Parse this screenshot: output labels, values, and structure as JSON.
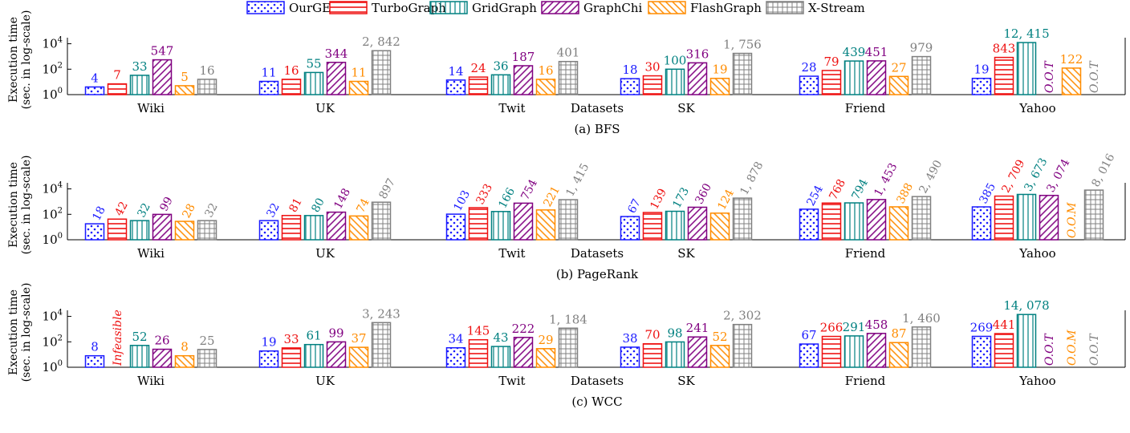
{
  "colors": {
    "OurGE": "#1a1aff",
    "TurboGraph": "#ee1111",
    "GridGraph": "#008080",
    "GraphChi": "#800080",
    "FlashGraph": "#ff8c00",
    "X-Stream": "#808080"
  },
  "legend": {
    "entries": [
      {
        "name": "OurGE",
        "pattern": "dots"
      },
      {
        "name": "TurboGraph",
        "pattern": "hlines"
      },
      {
        "name": "GridGraph",
        "pattern": "vlines"
      },
      {
        "name": "GraphChi",
        "pattern": "ne-lines"
      },
      {
        "name": "FlashGraph",
        "pattern": "nw-lines"
      },
      {
        "name": "X-Stream",
        "pattern": "grid"
      }
    ]
  },
  "chart_data": [
    {
      "type": "bar",
      "title": "(a) BFS",
      "ylabel": [
        "Execution time",
        "(sec. in log-scale)"
      ],
      "xlabel": "Datasets",
      "yscale": "log10",
      "ylim": [
        1,
        30000
      ],
      "yticks": [
        "10^0",
        "10^2",
        "10^4"
      ],
      "label_style": "horizontal",
      "categories": [
        "Wiki",
        "UK",
        "Twit",
        "SK",
        "Friend",
        "Yahoo"
      ],
      "series": [
        {
          "name": "OurGE",
          "values": [
            4,
            11,
            14,
            18,
            28,
            19
          ],
          "labels": [
            "4",
            "11",
            "14",
            "18",
            "28",
            "19"
          ]
        },
        {
          "name": "TurboGraph",
          "values": [
            7,
            16,
            24,
            30,
            79,
            843
          ],
          "labels": [
            "7",
            "16",
            "24",
            "30",
            "79",
            "843"
          ]
        },
        {
          "name": "GridGraph",
          "values": [
            33,
            55,
            36,
            100,
            439,
            12415
          ],
          "labels": [
            "33",
            "55",
            "36",
            "100",
            "439",
            "12, 415"
          ]
        },
        {
          "name": "GraphChi",
          "values": [
            547,
            344,
            187,
            316,
            451,
            null
          ],
          "labels": [
            "547",
            "344",
            "187",
            "316",
            "451",
            "O.O.T"
          ]
        },
        {
          "name": "FlashGraph",
          "values": [
            5,
            11,
            16,
            19,
            27,
            122
          ],
          "labels": [
            "5",
            "11",
            "16",
            "19",
            "27",
            "122"
          ]
        },
        {
          "name": "X-Stream",
          "values": [
            16,
            2842,
            401,
            1756,
            979,
            null
          ],
          "labels": [
            "16",
            "2, 842",
            "401",
            "1, 756",
            "979",
            "O.O.T"
          ]
        }
      ]
    },
    {
      "type": "bar",
      "title": "(b) PageRank",
      "ylabel": [
        "Execution time",
        "(sec. in log-scale)"
      ],
      "xlabel": "Datasets",
      "yscale": "log10",
      "ylim": [
        1,
        30000
      ],
      "yticks": [
        "10^0",
        "10^2",
        "10^4"
      ],
      "label_style": "rotated",
      "categories": [
        "Wiki",
        "UK",
        "Twit",
        "SK",
        "Friend",
        "Yahoo"
      ],
      "series": [
        {
          "name": "OurGE",
          "values": [
            18,
            32,
            103,
            67,
            254,
            385
          ],
          "labels": [
            "18",
            "32",
            "103",
            "67",
            "254",
            "385"
          ]
        },
        {
          "name": "TurboGraph",
          "values": [
            42,
            81,
            333,
            139,
            768,
            2709
          ],
          "labels": [
            "42",
            "81",
            "333",
            "139",
            "768",
            "2, 709"
          ]
        },
        {
          "name": "GridGraph",
          "values": [
            32,
            80,
            166,
            173,
            794,
            3673
          ],
          "labels": [
            "32",
            "80",
            "166",
            "173",
            "794",
            "3, 673"
          ]
        },
        {
          "name": "GraphChi",
          "values": [
            99,
            148,
            754,
            360,
            1453,
            3074
          ],
          "labels": [
            "99",
            "148",
            "754",
            "360",
            "1, 453",
            "3, 074"
          ]
        },
        {
          "name": "FlashGraph",
          "values": [
            28,
            74,
            221,
            124,
            388,
            null
          ],
          "labels": [
            "28",
            "74",
            "221",
            "124",
            "388",
            "O.O.M"
          ]
        },
        {
          "name": "X-Stream",
          "values": [
            32,
            897,
            1415,
            1878,
            2490,
            8016
          ],
          "labels": [
            "32",
            "897",
            "1, 415",
            "1, 878",
            "2, 490",
            "8, 016"
          ]
        }
      ]
    },
    {
      "type": "bar",
      "title": "(c) WCC",
      "ylabel": [
        "Execution time",
        "(sec. in log-scale)"
      ],
      "xlabel": "Datasets",
      "yscale": "log10",
      "ylim": [
        1,
        30000
      ],
      "yticks": [
        "10^0",
        "10^2",
        "10^4"
      ],
      "label_style": "horizontal",
      "categories": [
        "Wiki",
        "UK",
        "Twit",
        "SK",
        "Friend",
        "Yahoo"
      ],
      "series": [
        {
          "name": "OurGE",
          "values": [
            8,
            19,
            34,
            38,
            67,
            269
          ],
          "labels": [
            "8",
            "19",
            "34",
            "38",
            "67",
            "269"
          ]
        },
        {
          "name": "TurboGraph",
          "values": [
            null,
            33,
            145,
            70,
            266,
            441
          ],
          "labels": [
            "Infeasible",
            "33",
            "145",
            "70",
            "266",
            "441"
          ]
        },
        {
          "name": "GridGraph",
          "values": [
            52,
            61,
            43,
            98,
            291,
            14078
          ],
          "labels": [
            "52",
            "61",
            "43",
            "98",
            "291",
            "14, 078"
          ]
        },
        {
          "name": "GraphChi",
          "values": [
            26,
            99,
            222,
            241,
            458,
            null
          ],
          "labels": [
            "26",
            "99",
            "222",
            "241",
            "458",
            "O.O.T"
          ]
        },
        {
          "name": "FlashGraph",
          "values": [
            8,
            37,
            29,
            52,
            87,
            null
          ],
          "labels": [
            "8",
            "37",
            "29",
            "52",
            "87",
            "O.O.M"
          ]
        },
        {
          "name": "X-Stream",
          "values": [
            25,
            3243,
            1184,
            2302,
            1460,
            null
          ],
          "labels": [
            "25",
            "3, 243",
            "1, 184",
            "2, 302",
            "1, 460",
            "O.O.T"
          ]
        }
      ]
    }
  ]
}
